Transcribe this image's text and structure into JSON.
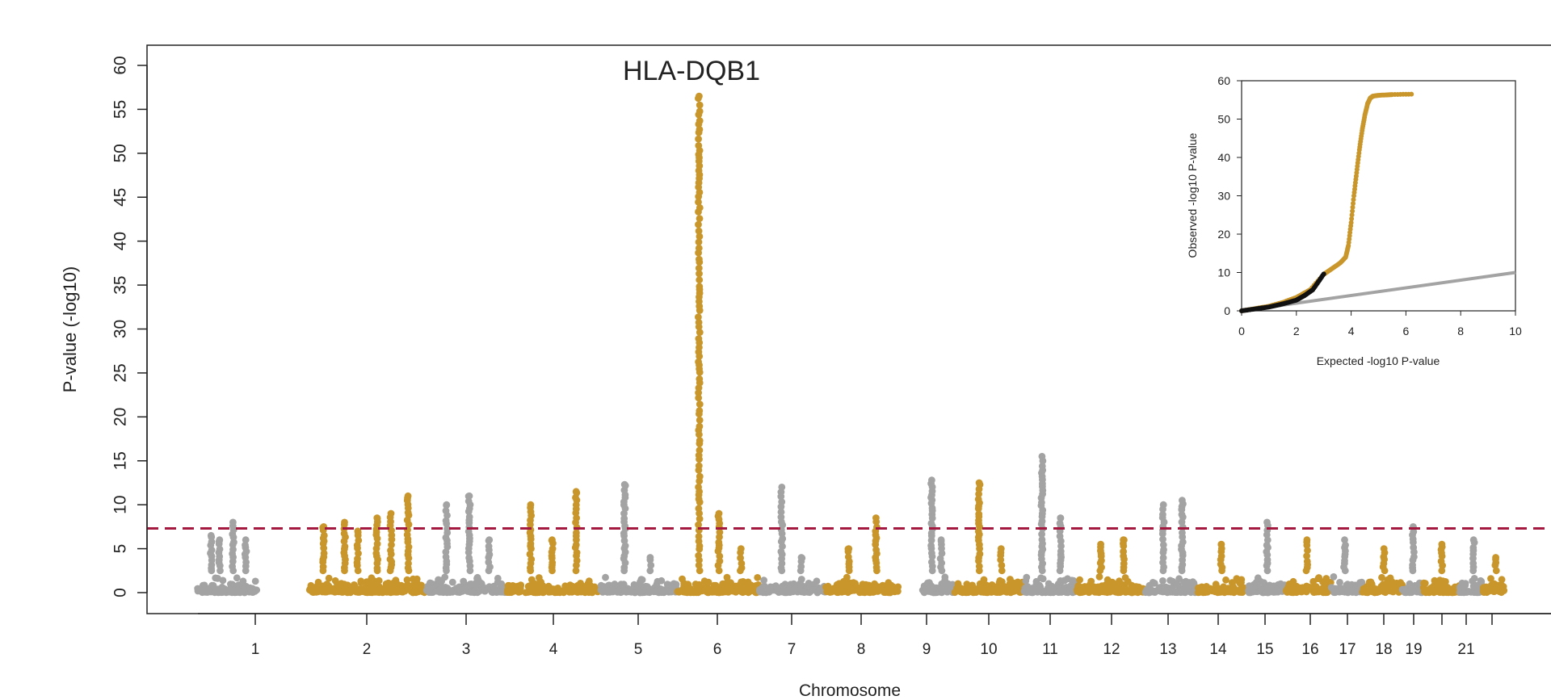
{
  "chart_data": [
    {
      "type": "scatter",
      "subtype": "manhattan",
      "title": "",
      "xlabel": "Chromosome",
      "ylabel": "P-value (-log10)",
      "ylim": [
        0,
        60
      ],
      "yticks": [
        0,
        5,
        10,
        15,
        20,
        25,
        30,
        35,
        40,
        45,
        50,
        55,
        60
      ],
      "xtick_labels": [
        "1",
        "2",
        "3",
        "4",
        "5",
        "6",
        "7",
        "8",
        "9",
        "10",
        "11",
        "12",
        "13",
        "14",
        "15",
        "16",
        "17",
        "18",
        "19",
        "21"
      ],
      "chromosomes": [
        {
          "chr": "1",
          "color": "gray",
          "peaks": [
            6.5,
            6,
            8,
            6
          ]
        },
        {
          "chr": "2",
          "color": "gold",
          "peaks": [
            7.5,
            8,
            7,
            8.5,
            9,
            11
          ]
        },
        {
          "chr": "3",
          "color": "gray",
          "peaks": [
            10,
            11,
            6
          ]
        },
        {
          "chr": "4",
          "color": "gold",
          "peaks": [
            10,
            6,
            11.5
          ]
        },
        {
          "chr": "5",
          "color": "gray",
          "peaks": [
            12.3,
            4
          ]
        },
        {
          "chr": "6",
          "color": "gold",
          "peaks": [
            56.5,
            9,
            5
          ]
        },
        {
          "chr": "7",
          "color": "gray",
          "peaks": [
            12,
            4
          ]
        },
        {
          "chr": "8",
          "color": "gold",
          "peaks": [
            5,
            8.5
          ]
        },
        {
          "chr": "9",
          "color": "gray",
          "peaks": [
            12.8,
            6
          ]
        },
        {
          "chr": "10",
          "color": "gold",
          "peaks": [
            12.5,
            5
          ]
        },
        {
          "chr": "11",
          "color": "gray",
          "peaks": [
            15.5,
            8.5
          ]
        },
        {
          "chr": "12",
          "color": "gold",
          "peaks": [
            5.5,
            6
          ]
        },
        {
          "chr": "13",
          "color": "gray",
          "peaks": [
            10,
            10.5
          ]
        },
        {
          "chr": "14",
          "color": "gold",
          "peaks": [
            5.5
          ]
        },
        {
          "chr": "15",
          "color": "gray",
          "peaks": [
            8
          ]
        },
        {
          "chr": "16",
          "color": "gold",
          "peaks": [
            6
          ]
        },
        {
          "chr": "17",
          "color": "gray",
          "peaks": [
            6
          ]
        },
        {
          "chr": "18",
          "color": "gold",
          "peaks": [
            5
          ]
        },
        {
          "chr": "19",
          "color": "gray",
          "peaks": [
            7.5
          ]
        },
        {
          "chr": "20",
          "color": "gold",
          "peaks": [
            5.5
          ]
        },
        {
          "chr": "21",
          "color": "gray",
          "peaks": [
            6
          ]
        },
        {
          "chr": "22",
          "color": "gold",
          "peaks": [
            4
          ]
        }
      ],
      "threshold": 7.3,
      "annotation": {
        "text": "HLA-DQB1",
        "chr": "6",
        "value": 56.5
      },
      "colors": {
        "gray": "#a3a3a3",
        "gold": "#c9962c",
        "threshold": "#a3193f",
        "axis": "#222222"
      }
    },
    {
      "type": "scatter",
      "subtype": "qq",
      "title": "",
      "xlabel": "Expected -log10 P-value",
      "ylabel": "Observed -log10 P-value",
      "xlim": [
        0,
        10
      ],
      "ylim": [
        0,
        60
      ],
      "xticks": [
        0,
        2,
        4,
        6,
        8,
        10
      ],
      "yticks": [
        0,
        10,
        20,
        30,
        40,
        50,
        60
      ],
      "series": [
        {
          "color": "gold",
          "x": [
            0,
            0.5,
            1,
            1.5,
            2,
            2.5,
            3,
            3.3,
            3.6,
            3.8,
            3.9,
            4.0,
            4.1,
            4.2,
            4.3,
            4.4,
            4.5,
            4.6,
            4.7,
            4.8,
            5.0,
            5.3,
            5.5,
            6.2
          ],
          "y": [
            0,
            0.6,
            1.2,
            2.2,
            3.5,
            5.5,
            9.5,
            11,
            12.5,
            14,
            17,
            23,
            30,
            36,
            42,
            47,
            51,
            54,
            55.5,
            56,
            56.2,
            56.3,
            56.4,
            56.5
          ]
        },
        {
          "color": "black",
          "x": [
            0,
            0.5,
            1,
            1.5,
            2,
            2.3,
            2.6,
            3.0
          ],
          "y": [
            0,
            0.5,
            1,
            1.8,
            2.8,
            4,
            5.5,
            9.6
          ]
        }
      ],
      "reference_line": {
        "x": [
          0,
          10
        ],
        "y": [
          0,
          10
        ]
      }
    }
  ]
}
